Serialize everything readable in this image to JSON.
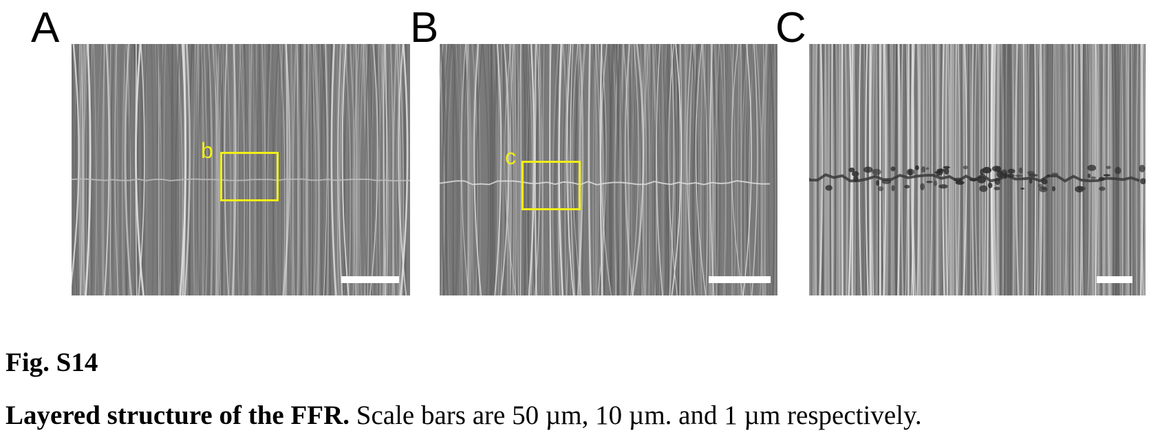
{
  "panels": [
    {
      "letter": "A",
      "roi_label": "b"
    },
    {
      "letter": "B",
      "roi_label": "c"
    },
    {
      "letter": "C"
    }
  ],
  "figure": {
    "label": "Fig. S14",
    "caption_title": "Layered structure of the FFR.",
    "caption_text": " Scale bars are 50 µm, 10 µm. and 1 µm respectively."
  },
  "colors": {
    "roi_box": "#f2ef17",
    "scale_bar": "#ffffff",
    "micrograph_base": "#7a7a7a"
  }
}
